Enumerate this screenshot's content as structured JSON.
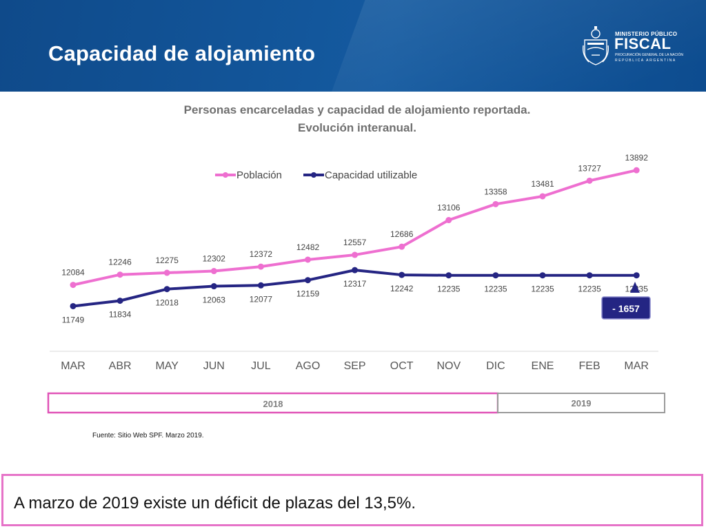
{
  "header": {
    "title": "Capacidad de alojamiento",
    "logo": {
      "line1": "MINISTERIO PÚBLICO",
      "line2": "FISCAL",
      "line3": "PROCURACIÓN GENERAL DE LA NACIÓN",
      "line4": "REPÚBLICA ARGENTINA"
    }
  },
  "colors": {
    "header_bg": "#145aa0",
    "poblacion": "#ee6fd0",
    "capacidad": "#252583",
    "deficit_bg": "#242583",
    "year_2018_border": "#e052b7",
    "year_2019_border": "#9a9a9a"
  },
  "chart_data": {
    "type": "line",
    "title": "Personas encarceladas y capacidad de alojamiento reportada.",
    "subtitle": "Evolución interanual.",
    "categories": [
      "MAR",
      "ABR",
      "MAY",
      "JUN",
      "JUL",
      "AGO",
      "SEP",
      "OCT",
      "NOV",
      "DIC",
      "ENE",
      "FEB",
      "MAR"
    ],
    "series": [
      {
        "name": "Población",
        "values": [
          12084,
          12246,
          12275,
          12302,
          12372,
          12482,
          12557,
          12686,
          13106,
          13358,
          13481,
          13727,
          13892
        ]
      },
      {
        "name": "Capacidad utilizable",
        "values": [
          11749,
          11834,
          12018,
          12063,
          12077,
          12159,
          12317,
          12242,
          12235,
          12235,
          12235,
          12235,
          12235
        ]
      }
    ],
    "ylim": [
      11200,
      14100
    ],
    "grid": false,
    "legend": "top-center",
    "annotation": "- 1657",
    "years": [
      {
        "label": "2018",
        "from": "MAR",
        "to": "DIC"
      },
      {
        "label": "2019",
        "from": "ENE",
        "to": "MAR"
      }
    ]
  },
  "source": "Fuente: Sitio Web SPF. Marzo 2019.",
  "conclusion": "A marzo de 2019 existe un déficit de plazas del 13,5%."
}
